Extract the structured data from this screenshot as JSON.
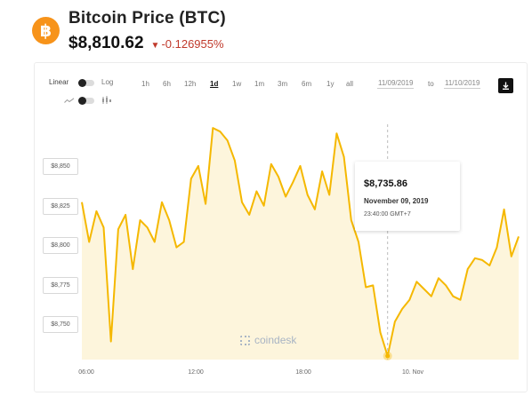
{
  "header": {
    "logo_symbol": "฿",
    "title": "Bitcoin Price (BTC)",
    "price": "$8,810.62",
    "change_arrow": "▼",
    "change": "-0.126955%",
    "change_color": "#c0392b",
    "brand_color": "#f7931a"
  },
  "controls": {
    "linear_label": "Linear",
    "log_label": "Log",
    "ranges": [
      "1h",
      "6h",
      "12h",
      "1d",
      "1w",
      "1m",
      "3m",
      "6m",
      "1y",
      "all"
    ],
    "active_range": "1d",
    "date_from": "11/09/2019",
    "to_label": "to",
    "date_to": "11/10/2019",
    "line_icon": "line-chart-icon",
    "candle_icon": "candlestick-icon",
    "download_icon": "download-icon"
  },
  "tooltip": {
    "price": "$8,735.86",
    "date": "November 09, 2019",
    "time": "23:40:00 GMT+7"
  },
  "watermark": "coindesk",
  "chart_data": {
    "type": "area",
    "title": "",
    "xlabel": "",
    "ylabel": "",
    "line_color": "#f5b800",
    "fill_color": "#fdf3d6",
    "x_ticks": [
      "06:00",
      "12:00",
      "18:00",
      "10. Nov"
    ],
    "y_ticks": [
      "$8,750",
      "$8,775",
      "$8,800",
      "$8,825",
      "$8,850"
    ],
    "ylim": [
      8735,
      8865
    ],
    "x_hours": [
      0,
      0.5,
      1,
      1.5,
      2,
      2.5,
      3,
      3.5,
      4,
      4.5,
      5,
      5.5,
      6,
      6.5,
      7,
      7.5,
      8,
      8.5,
      9,
      9.5,
      10,
      10.5,
      11,
      11.5,
      12,
      12.5,
      13,
      13.5,
      14,
      14.5,
      15,
      15.5,
      16,
      16.5,
      17,
      17.5,
      18,
      18.5,
      19,
      19.5,
      20,
      20.5,
      21,
      21.5,
      22,
      22.5,
      23,
      23.5,
      24,
      24.5,
      25,
      25.5,
      26,
      26.5,
      27,
      27.5,
      28,
      28.5,
      29,
      29.5,
      30
    ],
    "values": [
      8822,
      8800,
      8817,
      8808,
      8745,
      8807,
      8815,
      8785,
      8812,
      8808,
      8800,
      8822,
      8812,
      8797,
      8800,
      8835,
      8842,
      8821,
      8863,
      8861,
      8856,
      8845,
      8822,
      8815,
      8828,
      8820,
      8843,
      8836,
      8825,
      8833,
      8842,
      8826,
      8818,
      8839,
      8826,
      8860,
      8847,
      8812,
      8800,
      8775,
      8776,
      8750,
      8737,
      8756,
      8763,
      8768,
      8778,
      8774,
      8770,
      8780,
      8776,
      8770,
      8768,
      8785,
      8791,
      8790,
      8787,
      8797,
      8818,
      8792,
      8803
    ]
  }
}
